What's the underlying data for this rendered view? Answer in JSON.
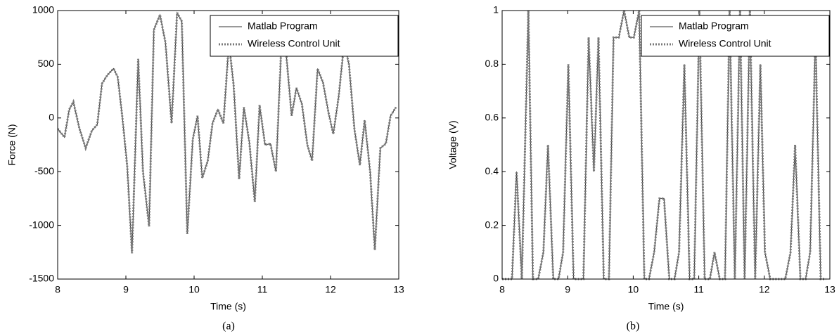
{
  "chart_data": [
    {
      "type": "line",
      "caption": "(a)",
      "x_label": "Time (s)",
      "y_label": "Force (N)",
      "x": [
        8.0,
        8.1,
        8.17,
        8.23,
        8.32,
        8.41,
        8.5,
        8.58,
        8.65,
        8.73,
        8.82,
        8.88,
        8.95,
        9.02,
        9.09,
        9.18,
        9.25,
        9.34,
        9.41,
        9.5,
        9.58,
        9.67,
        9.75,
        9.82,
        9.9,
        9.98,
        10.05,
        10.12,
        10.2,
        10.27,
        10.35,
        10.43,
        10.51,
        10.58,
        10.66,
        10.73,
        10.81,
        10.89,
        10.96,
        11.04,
        11.12,
        11.2,
        11.28,
        11.35,
        11.43,
        11.5,
        11.58,
        11.66,
        11.73,
        11.81,
        11.89,
        11.97,
        12.04,
        12.12,
        12.2,
        12.27,
        12.35,
        12.43,
        12.5,
        12.58,
        12.65,
        12.73,
        12.81,
        12.88,
        12.96
      ],
      "series": [
        {
          "name": "Matlab Program",
          "color": "#333333",
          "style": "solid",
          "values": [
            -100,
            -180,
            80,
            150,
            -100,
            -280,
            -120,
            -60,
            320,
            400,
            460,
            380,
            0,
            -450,
            -1260,
            550,
            -500,
            -1010,
            820,
            960,
            700,
            -50,
            980,
            900,
            -1080,
            -200,
            20,
            -560,
            -400,
            -50,
            80,
            -50,
            700,
            300,
            -570,
            100,
            -230,
            -780,
            120,
            -250,
            -240,
            -500,
            700,
            600,
            20,
            280,
            130,
            -250,
            -400,
            460,
            330,
            50,
            -150,
            200,
            700,
            500,
            -100,
            -440,
            -20,
            -500,
            -1230,
            -280,
            -240,
            20,
            100
          ]
        },
        {
          "name": "Wireless Control Unit",
          "color": "#7a7a7a",
          "style": "dotted",
          "values": [
            -100,
            -180,
            80,
            150,
            -100,
            -280,
            -120,
            -60,
            320,
            400,
            460,
            380,
            0,
            -450,
            -1260,
            550,
            -500,
            -1010,
            820,
            960,
            700,
            -50,
            980,
            900,
            -1080,
            -200,
            20,
            -560,
            -400,
            -50,
            80,
            -50,
            700,
            300,
            -570,
            100,
            -230,
            -780,
            120,
            -250,
            -240,
            -500,
            700,
            600,
            20,
            280,
            130,
            -250,
            -400,
            460,
            330,
            50,
            -150,
            200,
            700,
            500,
            -100,
            -440,
            -20,
            -500,
            -1230,
            -280,
            -240,
            20,
            100
          ]
        }
      ],
      "xlim": [
        8,
        13
      ],
      "xticks": [
        8,
        9,
        10,
        11,
        12,
        13
      ],
      "ylim": [
        -1500,
        1000
      ],
      "yticks": [
        -1500,
        -1000,
        -500,
        0,
        500,
        1000
      ],
      "legend": "top-right"
    },
    {
      "type": "line",
      "caption": "(b)",
      "x_label": "Time (s)",
      "y_label": "Voltage (V)",
      "x": [
        8.0,
        8.08,
        8.15,
        8.22,
        8.3,
        8.4,
        8.47,
        8.55,
        8.63,
        8.7,
        8.78,
        8.86,
        8.93,
        9.01,
        9.09,
        9.17,
        9.24,
        9.32,
        9.4,
        9.47,
        9.55,
        9.63,
        9.7,
        9.78,
        9.86,
        9.94,
        10.01,
        10.09,
        10.17,
        10.24,
        10.32,
        10.4,
        10.47,
        10.55,
        10.63,
        10.7,
        10.78,
        10.86,
        10.93,
        11.01,
        11.09,
        11.17,
        11.24,
        11.32,
        11.4,
        11.47,
        11.55,
        11.63,
        11.7,
        11.78,
        11.86,
        11.94,
        12.01,
        12.09,
        12.17,
        12.24,
        12.32,
        12.4,
        12.47,
        12.55,
        12.63,
        12.7,
        12.78,
        12.86,
        12.94
      ],
      "series": [
        {
          "name": "Matlab Program",
          "color": "#333333",
          "style": "solid",
          "values": [
            0,
            0,
            0,
            0.4,
            0,
            1,
            0,
            0,
            0.1,
            0.5,
            0,
            0,
            0.1,
            0.8,
            0,
            0,
            0,
            0.9,
            0.4,
            0.9,
            0,
            0,
            0.9,
            0.9,
            1,
            0.9,
            0.9,
            1,
            0,
            0,
            0.1,
            0.3,
            0.3,
            0,
            0,
            0.1,
            0.8,
            0,
            0,
            1,
            0,
            0,
            0.1,
            0,
            0,
            1,
            0,
            1,
            0,
            1,
            0,
            0.8,
            0.1,
            0,
            0,
            0,
            0,
            0.1,
            0.5,
            0,
            0,
            0.1,
            0.9,
            0,
            0
          ]
        },
        {
          "name": "Wireless Control Unit",
          "color": "#7a7a7a",
          "style": "dotted",
          "values": [
            0,
            0,
            0,
            0.4,
            0,
            1,
            0,
            0,
            0.1,
            0.5,
            0,
            0,
            0.1,
            0.8,
            0,
            0,
            0,
            0.9,
            0.4,
            0.9,
            0,
            0,
            0.9,
            0.9,
            1,
            0.9,
            0.9,
            1,
            0,
            0,
            0.1,
            0.3,
            0.3,
            0,
            0,
            0.1,
            0.8,
            0,
            0,
            1,
            0,
            0,
            0.1,
            0,
            0,
            1,
            0,
            1,
            0,
            1,
            0,
            0.8,
            0.1,
            0,
            0,
            0,
            0,
            0.1,
            0.5,
            0,
            0,
            0.1,
            0.9,
            0,
            0
          ]
        }
      ],
      "xlim": [
        8,
        13
      ],
      "xticks": [
        8,
        9,
        10,
        11,
        12,
        13
      ],
      "ylim": [
        0,
        1
      ],
      "yticks": [
        0,
        0.2,
        0.4,
        0.6,
        0.8,
        1
      ],
      "legend": "top-right"
    }
  ]
}
